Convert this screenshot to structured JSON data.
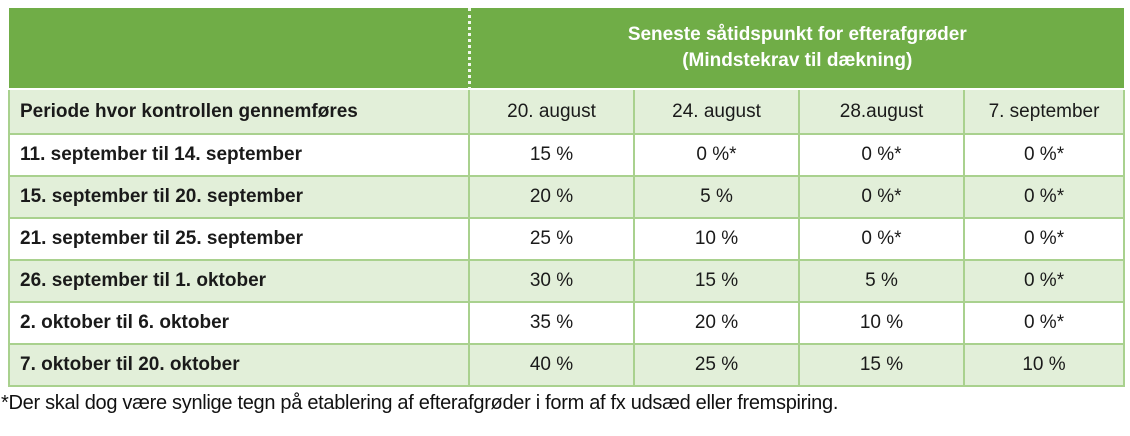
{
  "table": {
    "header": {
      "title_line1": "Seneste såtidspunkt for efterafgrøder",
      "title_line2": "(Mindstekrav til dækning)"
    },
    "columns": {
      "period_label": "Periode hvor kontrollen gennemføres",
      "dates": [
        "20. august",
        "24. august",
        "28.august",
        "7. september"
      ]
    },
    "rows": [
      {
        "period": "11. september til 14. september",
        "values": [
          "15 %",
          "0 %*",
          "0 %*",
          "0 %*"
        ]
      },
      {
        "period": "15. september til 20. september",
        "values": [
          "20 %",
          "5 %",
          "0 %*",
          "0 %*"
        ]
      },
      {
        "period": "21. september til 25. september",
        "values": [
          "25 %",
          "10 %",
          "0 %*",
          "0 %*"
        ]
      },
      {
        "period": "26. september til 1. oktober",
        "values": [
          "30 %",
          "15 %",
          "5 %",
          "0 %*"
        ]
      },
      {
        "period": "2. oktober til 6. oktober",
        "values": [
          "35 %",
          "20 %",
          "10 %",
          "0 %*"
        ]
      },
      {
        "period": "7. oktober til 20. oktober",
        "values": [
          "40 %",
          "25 %",
          "15 %",
          "10 %"
        ]
      }
    ],
    "footnote": "*Der skal dog være synlige tegn på etablering af efterafgrøder i form af fx udsæd eller fremspiring.",
    "colors": {
      "header_green": "#70AD47",
      "light_green": "#E2EFD9",
      "border_green": "#A9D18E",
      "header_text": "#FFFFFF",
      "text_dark": "#1A1A1A"
    }
  }
}
